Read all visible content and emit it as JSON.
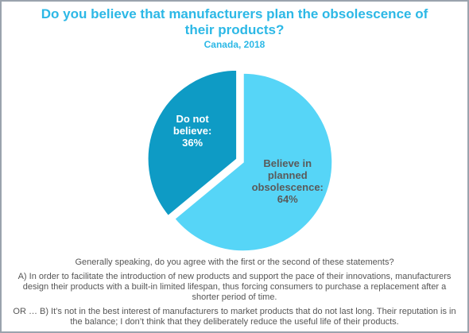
{
  "chart_data": {
    "type": "pie",
    "title": "Do you believe that manufacturers plan the obsolescence of their products?",
    "subtitle": "Canada, 2018",
    "categories": [
      "Believe in planned obsolescence:",
      "Do not believe:"
    ],
    "values": [
      64,
      36
    ],
    "value_labels": [
      "64%",
      "36%"
    ],
    "colors": [
      "#56d5f7",
      "#0e9bc5"
    ],
    "label_colors": [
      "#5a5a5a",
      "#ffffff"
    ],
    "exploded": [
      false,
      true
    ],
    "notes": [
      "Generally speaking, do you agree with the first or the second of these statements?",
      "A) In order to facilitate the introduction of new products and support the pace of their innovations, manufacturers design their products with a built-in limited lifespan, thus forcing consumers to purchase a replacement after a shorter period of time.",
      "OR … B) It’s not in the best interest of manufacturers to market products that do not last long. Their reputation is in the balance; I don’t think that they deliberately reduce the useful life of their products."
    ]
  }
}
